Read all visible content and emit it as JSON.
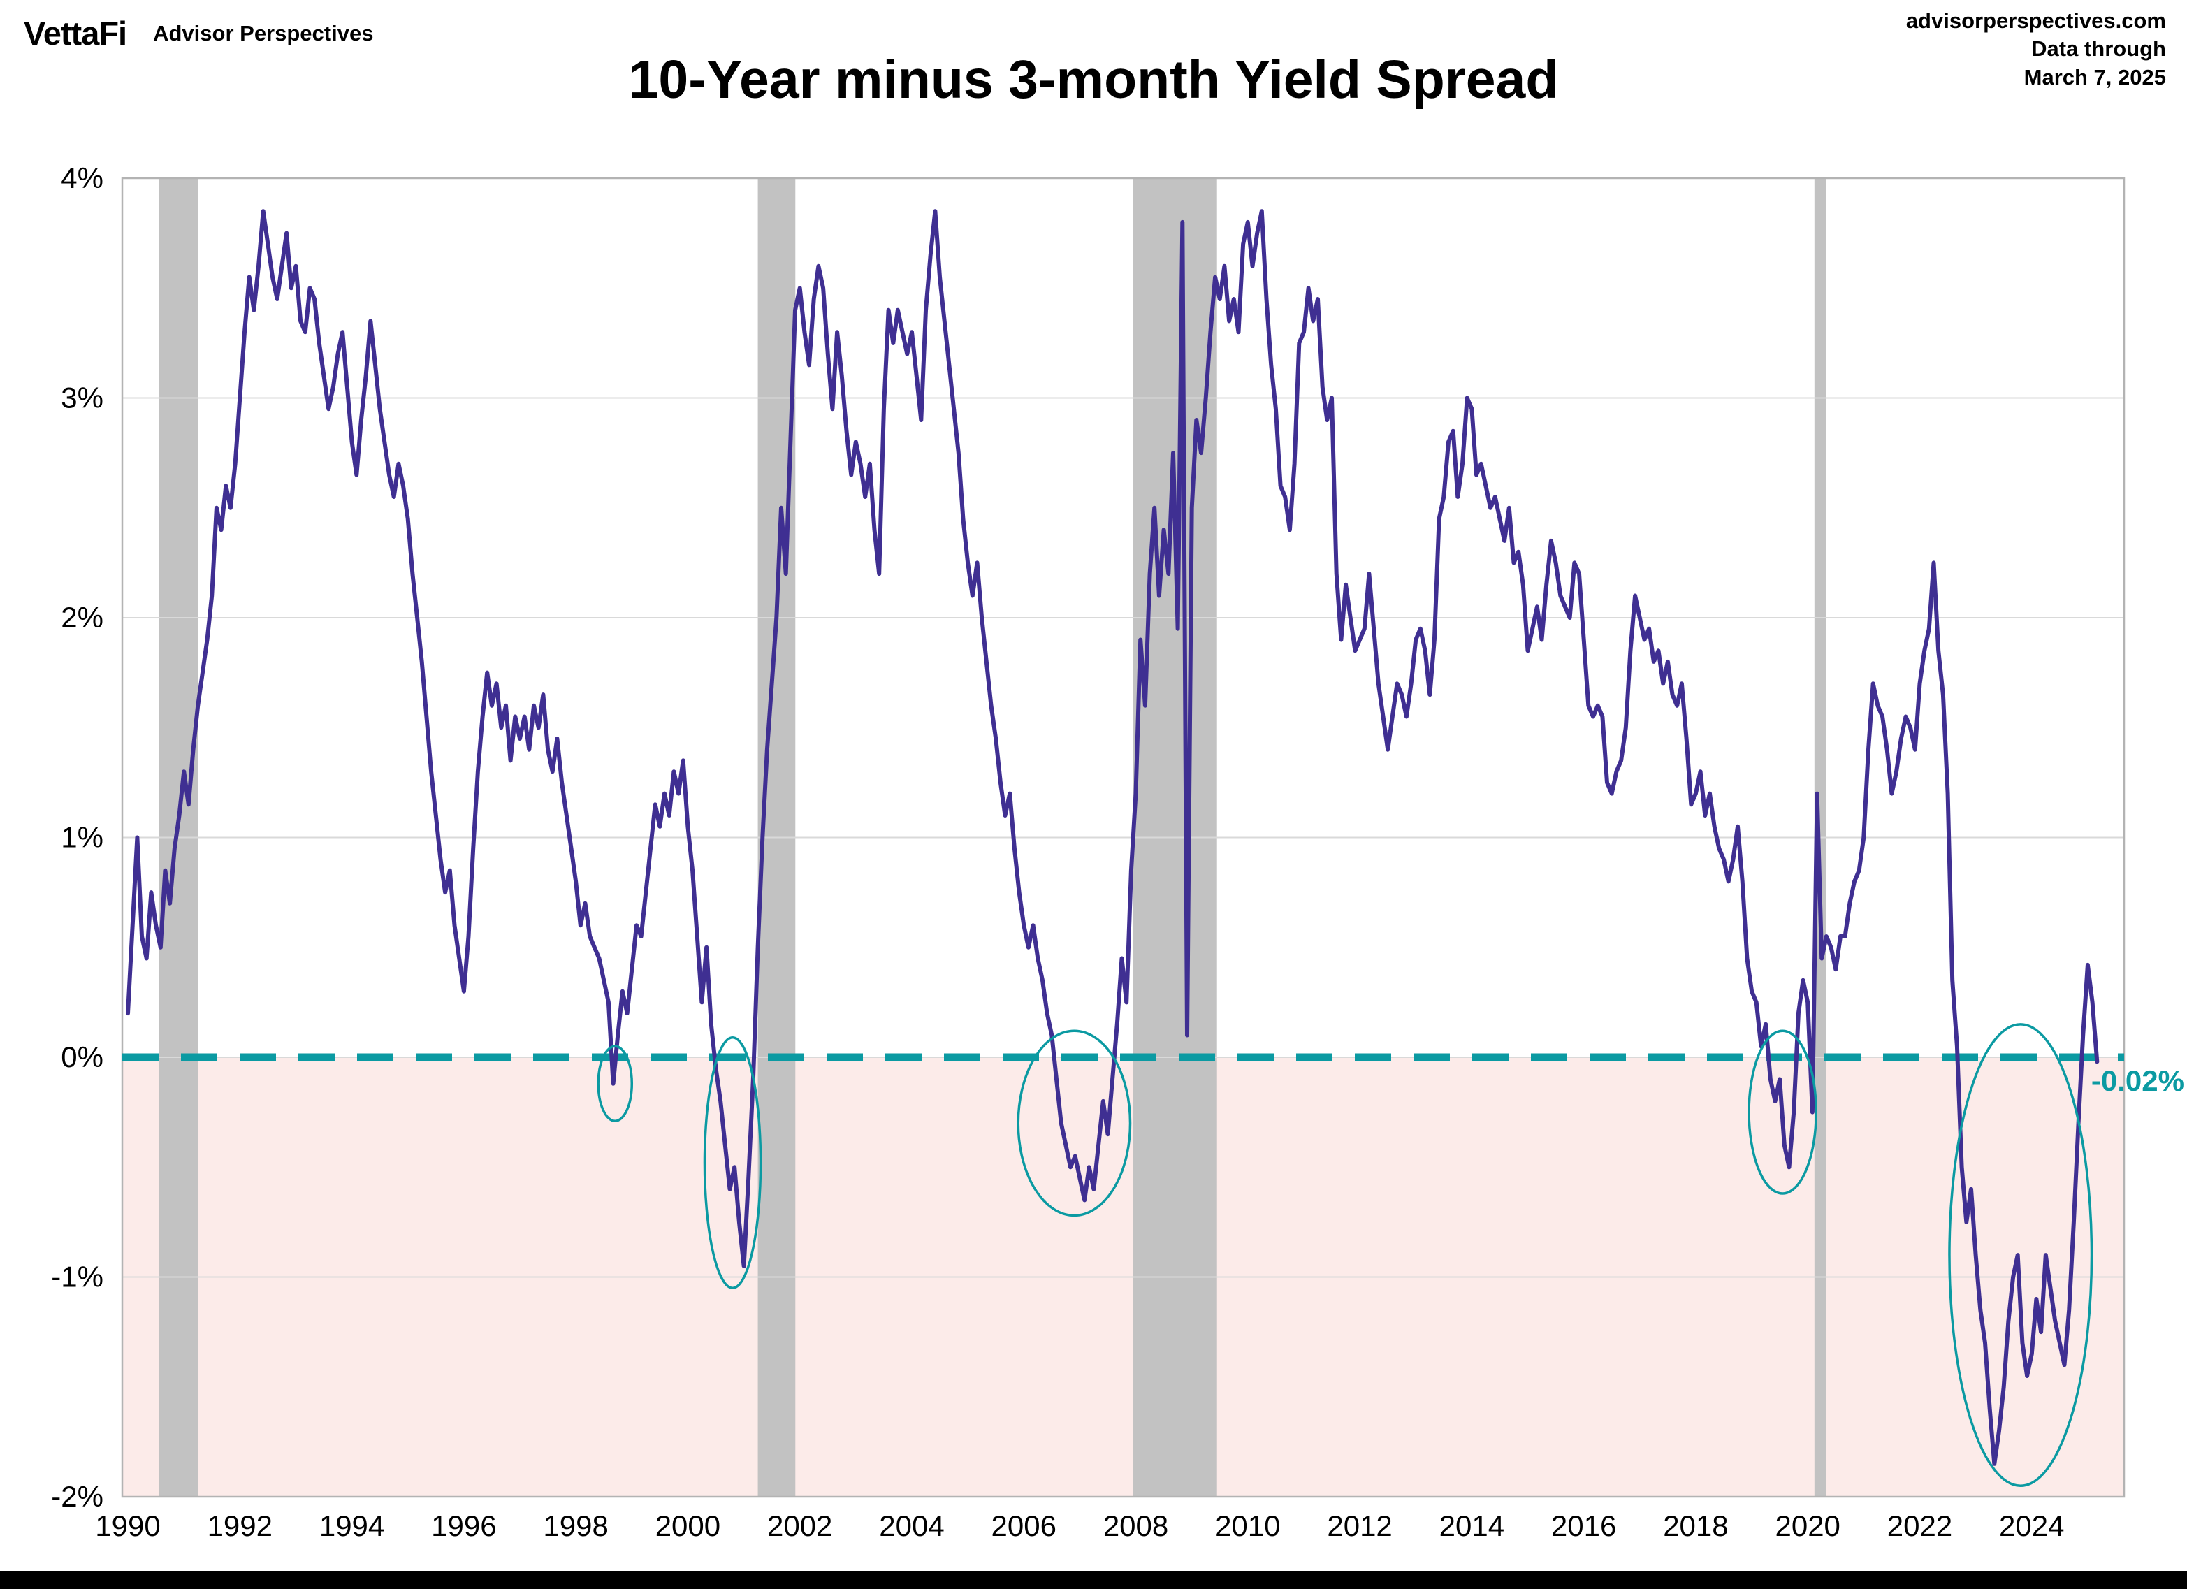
{
  "branding": {
    "logo": "VettaFi",
    "tagline": "Advisor Perspectives"
  },
  "header_right": {
    "line1": "advisorperspectives.com",
    "line2": "Data through",
    "line3": "March 7, 2025"
  },
  "title": "10-Year minus 3-month Yield Spread",
  "latest_value_label": "-0.02%",
  "colors": {
    "line": "#3f2f92",
    "teal": "#0b9aa2",
    "below_zero_fill": "#fcebe9",
    "recession_band": "#c2c2c2",
    "gridline": "#d9d9d9",
    "plot_border": "#b3b3b3",
    "text": "#000000"
  },
  "chart_data": {
    "type": "line",
    "title": "10-Year minus 3-month Yield Spread",
    "series_name": "10-year minus 3-month Treasury yield spread (%)",
    "x_start_year": 1990,
    "points_per_year": 12,
    "last_point": "March 7, 2025",
    "latest_value": -0.02,
    "ylim": [
      -2,
      4
    ],
    "xlim": [
      1989.9,
      2025.65
    ],
    "y_tick_values": [
      4,
      3,
      2,
      1,
      0,
      -1,
      -2
    ],
    "y_ticks": [
      "4%",
      "3%",
      "2%",
      "1%",
      "0%",
      "-1%",
      "-2%"
    ],
    "x_ticks": [
      1990,
      1992,
      1994,
      1996,
      1998,
      2000,
      2002,
      2004,
      2006,
      2008,
      2010,
      2012,
      2014,
      2016,
      2018,
      2020,
      2022,
      2024
    ],
    "zero_line_value": 0,
    "grid": "horizontal",
    "values": [
      0.2,
      0.6,
      1.0,
      0.55,
      0.45,
      0.75,
      0.6,
      0.5,
      0.85,
      0.7,
      0.95,
      1.1,
      1.3,
      1.15,
      1.4,
      1.6,
      1.75,
      1.9,
      2.1,
      2.5,
      2.4,
      2.6,
      2.5,
      2.7,
      3.0,
      3.3,
      3.55,
      3.4,
      3.6,
      3.85,
      3.7,
      3.55,
      3.45,
      3.6,
      3.75,
      3.5,
      3.6,
      3.35,
      3.3,
      3.5,
      3.45,
      3.25,
      3.1,
      2.95,
      3.05,
      3.2,
      3.3,
      3.05,
      2.8,
      2.65,
      2.9,
      3.1,
      3.35,
      3.15,
      2.95,
      2.8,
      2.65,
      2.55,
      2.7,
      2.6,
      2.45,
      2.2,
      2.0,
      1.8,
      1.55,
      1.3,
      1.1,
      0.9,
      0.75,
      0.85,
      0.6,
      0.45,
      0.3,
      0.55,
      0.95,
      1.3,
      1.55,
      1.75,
      1.6,
      1.7,
      1.5,
      1.6,
      1.35,
      1.55,
      1.45,
      1.55,
      1.4,
      1.6,
      1.5,
      1.65,
      1.4,
      1.3,
      1.45,
      1.25,
      1.1,
      0.95,
      0.8,
      0.6,
      0.7,
      0.55,
      0.5,
      0.45,
      0.35,
      0.25,
      -0.12,
      0.1,
      0.3,
      0.2,
      0.4,
      0.6,
      0.55,
      0.75,
      0.95,
      1.15,
      1.05,
      1.2,
      1.1,
      1.3,
      1.2,
      1.35,
      1.05,
      0.85,
      0.55,
      0.25,
      0.5,
      0.15,
      -0.05,
      -0.2,
      -0.4,
      -0.6,
      -0.5,
      -0.75,
      -0.95,
      -0.55,
      -0.1,
      0.5,
      1.0,
      1.4,
      1.7,
      2.0,
      2.5,
      2.2,
      2.8,
      3.4,
      3.5,
      3.3,
      3.15,
      3.45,
      3.6,
      3.5,
      3.2,
      2.95,
      3.3,
      3.1,
      2.85,
      2.65,
      2.8,
      2.7,
      2.55,
      2.7,
      2.4,
      2.2,
      2.95,
      3.4,
      3.25,
      3.4,
      3.3,
      3.2,
      3.3,
      3.1,
      2.9,
      3.4,
      3.65,
      3.85,
      3.55,
      3.35,
      3.15,
      2.95,
      2.75,
      2.45,
      2.25,
      2.1,
      2.25,
      2.0,
      1.8,
      1.6,
      1.45,
      1.25,
      1.1,
      1.2,
      0.95,
      0.75,
      0.6,
      0.5,
      0.6,
      0.45,
      0.35,
      0.2,
      0.1,
      -0.1,
      -0.3,
      -0.4,
      -0.5,
      -0.45,
      -0.55,
      -0.65,
      -0.5,
      -0.6,
      -0.4,
      -0.2,
      -0.35,
      -0.1,
      0.15,
      0.45,
      0.25,
      0.85,
      1.2,
      1.9,
      1.6,
      2.2,
      2.5,
      2.1,
      2.4,
      2.2,
      2.75,
      1.95,
      3.8,
      0.1,
      2.5,
      2.9,
      2.75,
      3.0,
      3.3,
      3.55,
      3.45,
      3.6,
      3.35,
      3.45,
      3.3,
      3.7,
      3.8,
      3.6,
      3.75,
      3.85,
      3.45,
      3.15,
      2.95,
      2.6,
      2.55,
      2.4,
      2.7,
      3.25,
      3.3,
      3.5,
      3.35,
      3.45,
      3.05,
      2.9,
      3.0,
      2.2,
      1.9,
      2.15,
      2.0,
      1.85,
      1.9,
      1.95,
      2.2,
      1.95,
      1.7,
      1.55,
      1.4,
      1.55,
      1.7,
      1.65,
      1.55,
      1.7,
      1.9,
      1.95,
      1.85,
      1.65,
      1.9,
      2.45,
      2.55,
      2.8,
      2.85,
      2.55,
      2.7,
      3.0,
      2.95,
      2.65,
      2.7,
      2.6,
      2.5,
      2.55,
      2.45,
      2.35,
      2.5,
      2.25,
      2.3,
      2.15,
      1.85,
      1.95,
      2.05,
      1.9,
      2.15,
      2.35,
      2.25,
      2.1,
      2.05,
      2.0,
      2.25,
      2.2,
      1.9,
      1.6,
      1.55,
      1.6,
      1.55,
      1.25,
      1.2,
      1.3,
      1.35,
      1.5,
      1.85,
      2.1,
      2.0,
      1.9,
      1.95,
      1.8,
      1.85,
      1.7,
      1.8,
      1.65,
      1.6,
      1.7,
      1.45,
      1.15,
      1.2,
      1.3,
      1.1,
      1.2,
      1.05,
      0.95,
      0.9,
      0.8,
      0.9,
      1.05,
      0.8,
      0.45,
      0.3,
      0.25,
      0.05,
      0.15,
      -0.1,
      -0.2,
      -0.1,
      -0.4,
      -0.5,
      -0.25,
      0.2,
      0.35,
      0.25,
      -0.25,
      1.2,
      0.45,
      0.55,
      0.5,
      0.4,
      0.55,
      0.55,
      0.7,
      0.8,
      0.85,
      1.0,
      1.4,
      1.7,
      1.6,
      1.55,
      1.4,
      1.2,
      1.3,
      1.45,
      1.55,
      1.5,
      1.4,
      1.7,
      1.85,
      1.95,
      2.25,
      1.85,
      1.65,
      1.2,
      0.35,
      0.05,
      -0.5,
      -0.75,
      -0.6,
      -0.9,
      -1.15,
      -1.3,
      -1.6,
      -1.85,
      -1.7,
      -1.5,
      -1.2,
      -1.0,
      -0.9,
      -1.3,
      -1.45,
      -1.35,
      -1.1,
      -1.25,
      -0.9,
      -1.05,
      -1.2,
      -1.3,
      -1.4,
      -1.15,
      -0.75,
      -0.3,
      0.1,
      0.42,
      0.25,
      -0.02
    ],
    "recession_bands": [
      [
        1990.55,
        1991.25
      ],
      [
        2001.25,
        2001.92
      ],
      [
        2007.95,
        2009.45
      ],
      [
        2020.12,
        2020.33
      ]
    ],
    "inversion_ellipses": [
      {
        "cx": 1998.7,
        "cy": -0.12,
        "rx": 0.3,
        "ry": 0.17
      },
      {
        "cx": 2000.8,
        "cy": -0.48,
        "rx": 0.5,
        "ry": 0.57
      },
      {
        "cx": 2006.9,
        "cy": -0.3,
        "rx": 1.0,
        "ry": 0.42
      },
      {
        "cx": 2019.55,
        "cy": -0.25,
        "rx": 0.6,
        "ry": 0.37
      },
      {
        "cx": 2023.8,
        "cy": -0.9,
        "rx": 1.27,
        "ry": 1.05
      }
    ]
  }
}
